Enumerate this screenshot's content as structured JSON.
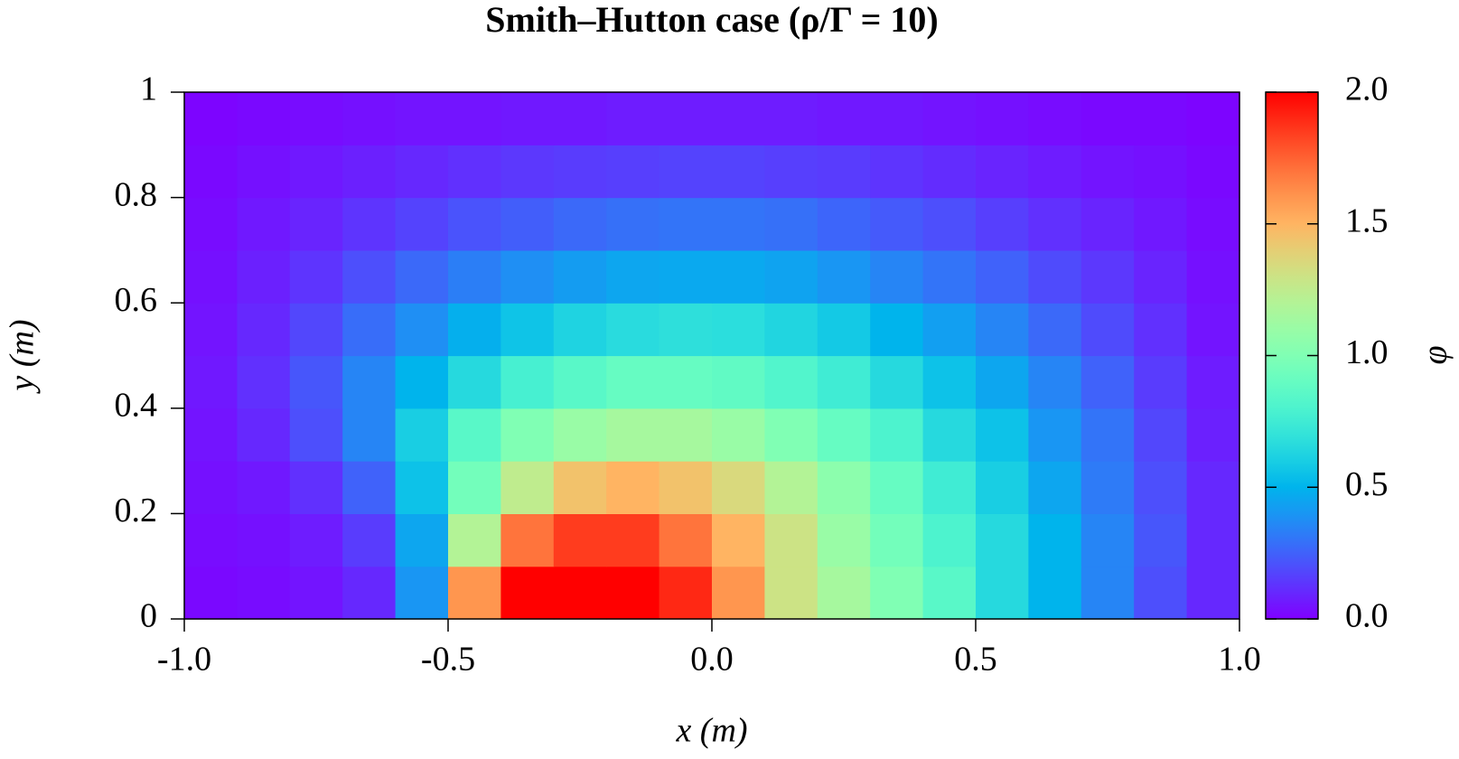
{
  "chart_data": {
    "type": "heatmap",
    "title": "Smith–Hutton case (ρ/Γ = 10)",
    "x_label": "x (m)",
    "y_label": "y (m)",
    "colorbar_label": "φ",
    "colormap": "rainbow",
    "x": [
      -0.95,
      -0.85,
      -0.75,
      -0.65,
      -0.55,
      -0.45,
      -0.35,
      -0.25,
      -0.15,
      -0.05,
      0.05,
      0.15,
      0.25,
      0.35,
      0.45,
      0.55,
      0.65,
      0.75,
      0.85,
      0.95
    ],
    "y": [
      0.05,
      0.15,
      0.25,
      0.35,
      0.45,
      0.55,
      0.65,
      0.75,
      0.85,
      0.95
    ],
    "z": [
      [
        0.02,
        0.03,
        0.05,
        0.1,
        0.4,
        1.6,
        2.0,
        2.0,
        2.0,
        1.9,
        1.6,
        1.3,
        1.15,
        1.0,
        0.85,
        0.65,
        0.5,
        0.35,
        0.2,
        0.1
      ],
      [
        0.03,
        0.04,
        0.07,
        0.15,
        0.45,
        1.2,
        1.7,
        1.85,
        1.85,
        1.7,
        1.5,
        1.3,
        1.1,
        0.95,
        0.8,
        0.65,
        0.5,
        0.35,
        0.22,
        0.1
      ],
      [
        0.04,
        0.06,
        0.12,
        0.25,
        0.55,
        0.95,
        1.25,
        1.45,
        1.5,
        1.45,
        1.35,
        1.2,
        1.05,
        0.9,
        0.75,
        0.6,
        0.45,
        0.32,
        0.2,
        0.1
      ],
      [
        0.05,
        0.1,
        0.2,
        0.35,
        0.6,
        0.85,
        1.0,
        1.1,
        1.15,
        1.15,
        1.1,
        1.0,
        0.9,
        0.8,
        0.65,
        0.55,
        0.4,
        0.3,
        0.18,
        0.08
      ],
      [
        0.06,
        0.12,
        0.22,
        0.35,
        0.5,
        0.65,
        0.78,
        0.85,
        0.9,
        0.9,
        0.88,
        0.82,
        0.75,
        0.65,
        0.55,
        0.45,
        0.35,
        0.25,
        0.15,
        0.07
      ],
      [
        0.05,
        0.1,
        0.18,
        0.28,
        0.38,
        0.48,
        0.56,
        0.62,
        0.66,
        0.68,
        0.67,
        0.63,
        0.58,
        0.5,
        0.43,
        0.35,
        0.27,
        0.19,
        0.12,
        0.05
      ],
      [
        0.04,
        0.08,
        0.13,
        0.2,
        0.27,
        0.33,
        0.38,
        0.42,
        0.45,
        0.46,
        0.46,
        0.44,
        0.4,
        0.35,
        0.3,
        0.25,
        0.19,
        0.14,
        0.09,
        0.04
      ],
      [
        0.03,
        0.06,
        0.09,
        0.13,
        0.17,
        0.21,
        0.24,
        0.27,
        0.29,
        0.3,
        0.3,
        0.29,
        0.26,
        0.23,
        0.2,
        0.16,
        0.12,
        0.09,
        0.06,
        0.03
      ],
      [
        0.02,
        0.04,
        0.06,
        0.08,
        0.1,
        0.12,
        0.14,
        0.15,
        0.16,
        0.17,
        0.17,
        0.16,
        0.15,
        0.13,
        0.11,
        0.09,
        0.07,
        0.05,
        0.04,
        0.02
      ],
      [
        0.01,
        0.02,
        0.03,
        0.04,
        0.05,
        0.05,
        0.06,
        0.06,
        0.07,
        0.07,
        0.07,
        0.07,
        0.06,
        0.06,
        0.05,
        0.04,
        0.03,
        0.02,
        0.02,
        0.01
      ]
    ],
    "xlim": [
      -1,
      1
    ],
    "ylim": [
      0,
      1
    ],
    "zlim": [
      0,
      2
    ],
    "xticks": [
      {
        "value": -1,
        "label": "-1.0"
      },
      {
        "value": -0.5,
        "label": "-0.5"
      },
      {
        "value": 0,
        "label": "0.0"
      },
      {
        "value": 0.5,
        "label": "0.5"
      },
      {
        "value": 1,
        "label": "1.0"
      }
    ],
    "yticks": [
      0,
      0.2,
      0.4,
      0.6,
      0.8,
      1
    ],
    "zticks": [
      {
        "value": 0,
        "label": "0.0"
      },
      {
        "value": 0.5,
        "label": "0.5"
      },
      {
        "value": 1,
        "label": "1.0"
      },
      {
        "value": 1.5,
        "label": "1.5"
      },
      {
        "value": 2,
        "label": "2.0"
      }
    ]
  }
}
